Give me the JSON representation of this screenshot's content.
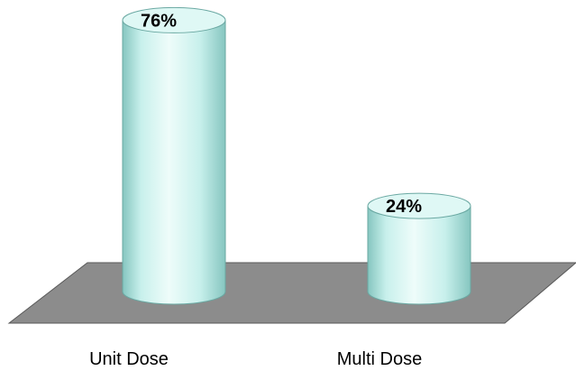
{
  "chart_data": {
    "type": "bar",
    "style": "3d-cylinder",
    "categories": [
      "Unit Dose",
      "Multi Dose"
    ],
    "values": [
      76,
      24
    ],
    "data_labels": [
      "76%",
      "24%"
    ],
    "unit": "%",
    "ylim": [
      0,
      100
    ],
    "grid": false,
    "legend": "none",
    "title": "",
    "xlabel": "",
    "ylabel": "",
    "colors": {
      "bar_fill": "#c8f0ec",
      "bar_highlight": "#eefcfa",
      "bar_shade": "#86c6c0",
      "bar_top": "#dff8f5",
      "bar_outline": "#6aa8a2",
      "floor": "#8c8c8c",
      "floor_edge": "#595959"
    }
  }
}
